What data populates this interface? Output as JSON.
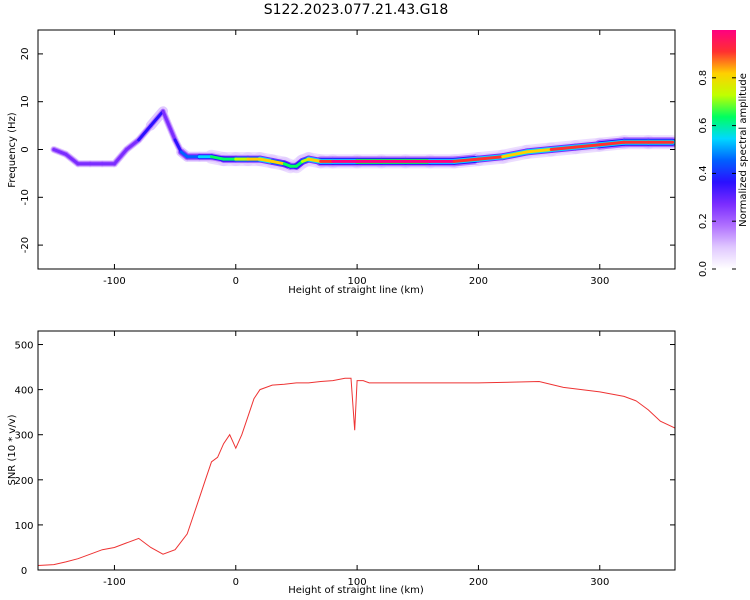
{
  "title": "S122.2023.077.21.43.G18",
  "colors": {
    "snr_line": "#ee3333",
    "frame": "#000000",
    "colormap": [
      "#ffffff",
      "#e0c8ff",
      "#b070ff",
      "#7a2cff",
      "#2a10ff",
      "#0060ff",
      "#00d8ff",
      "#00ff60",
      "#c0ff00",
      "#ffd000",
      "#ff3030",
      "#ff0080"
    ]
  },
  "chart_data": [
    {
      "type": "heatmap",
      "title": "S122.2023.077.21.43.G18",
      "xlabel": "Height of straight line (km)",
      "ylabel": "Frequency (Hz)",
      "xlim": [
        -163,
        362
      ],
      "ylim": [
        -25,
        25
      ],
      "xticks": [
        -100,
        0,
        100,
        200,
        300
      ],
      "xtick_labels": [
        "-100",
        "0",
        "100",
        "200",
        "300"
      ],
      "yticks": [
        -20,
        -10,
        0,
        10,
        20
      ],
      "ytick_labels": [
        "-20",
        "-10",
        "0",
        "10",
        "20"
      ],
      "colorbar": {
        "label": "Normalized spectral amplitude",
        "range": [
          0,
          1
        ],
        "ticks": [
          0.0,
          0.2,
          0.4,
          0.6,
          0.8
        ],
        "tick_labels": [
          "0.0",
          "0.2",
          "0.4",
          "0.6",
          "0.8"
        ]
      },
      "ridge": {
        "x": [
          -150,
          -140,
          -130,
          -120,
          -110,
          -100,
          -90,
          -80,
          -70,
          -60,
          -50,
          -45,
          -40,
          -30,
          -20,
          -10,
          0,
          10,
          20,
          30,
          40,
          45,
          50,
          55,
          60,
          70,
          80,
          100,
          120,
          140,
          160,
          180,
          200,
          220,
          240,
          260,
          280,
          300,
          320,
          340,
          360
        ],
        "y": [
          0,
          -1,
          -3,
          -3,
          -3,
          -3,
          0,
          2,
          5,
          8,
          2,
          -0.5,
          -1.5,
          -1.5,
          -1.5,
          -2,
          -2,
          -2,
          -2,
          -2.5,
          -3,
          -3.5,
          -3.5,
          -2.5,
          -2,
          -2.5,
          -2.5,
          -2.5,
          -2.5,
          -2.5,
          -2.5,
          -2.5,
          -2,
          -1.5,
          -0.5,
          0,
          0.5,
          1,
          1.5,
          1.5,
          1.5
        ],
        "amplitude": [
          0.3,
          0.2,
          0.3,
          0.3,
          0.3,
          0.3,
          0.3,
          0.3,
          0.35,
          0.35,
          0.25,
          0.4,
          0.45,
          0.5,
          0.6,
          0.65,
          0.7,
          0.8,
          0.85,
          0.85,
          0.7,
          0.6,
          0.6,
          0.7,
          0.8,
          0.9,
          0.95,
          1.0,
          1.0,
          1.0,
          1.0,
          0.95,
          0.9,
          0.85,
          0.85,
          0.85,
          0.9,
          0.9,
          0.95,
          0.95,
          0.9
        ]
      }
    },
    {
      "type": "line",
      "xlabel": "Height of straight line (km)",
      "ylabel": "SNR (10 * v/v)",
      "xlim": [
        -163,
        362
      ],
      "ylim": [
        0,
        530
      ],
      "xticks": [
        -100,
        0,
        100,
        200,
        300
      ],
      "xtick_labels": [
        "-100",
        "0",
        "100",
        "200",
        "300"
      ],
      "yticks": [
        0,
        100,
        200,
        300,
        400,
        500
      ],
      "ytick_labels": [
        "0",
        "100",
        "200",
        "300",
        "400",
        "500"
      ],
      "series": [
        {
          "x": [
            -163,
            -150,
            -140,
            -130,
            -120,
            -110,
            -100,
            -90,
            -80,
            -70,
            -60,
            -50,
            -40,
            -35,
            -30,
            -25,
            -20,
            -15,
            -10,
            -5,
            0,
            5,
            10,
            15,
            20,
            25,
            30,
            40,
            50,
            60,
            70,
            80,
            90,
            95,
            98,
            100,
            105,
            110,
            120,
            150,
            200,
            250,
            270,
            300,
            320,
            330,
            340,
            350,
            362
          ],
          "y": [
            10,
            12,
            18,
            25,
            35,
            45,
            50,
            60,
            70,
            50,
            35,
            45,
            80,
            120,
            160,
            200,
            240,
            250,
            280,
            300,
            270,
            300,
            340,
            380,
            400,
            405,
            410,
            412,
            415,
            415,
            418,
            420,
            425,
            425,
            310,
            420,
            420,
            415,
            415,
            415,
            415,
            418,
            405,
            395,
            385,
            375,
            355,
            330,
            315
          ]
        }
      ]
    }
  ]
}
